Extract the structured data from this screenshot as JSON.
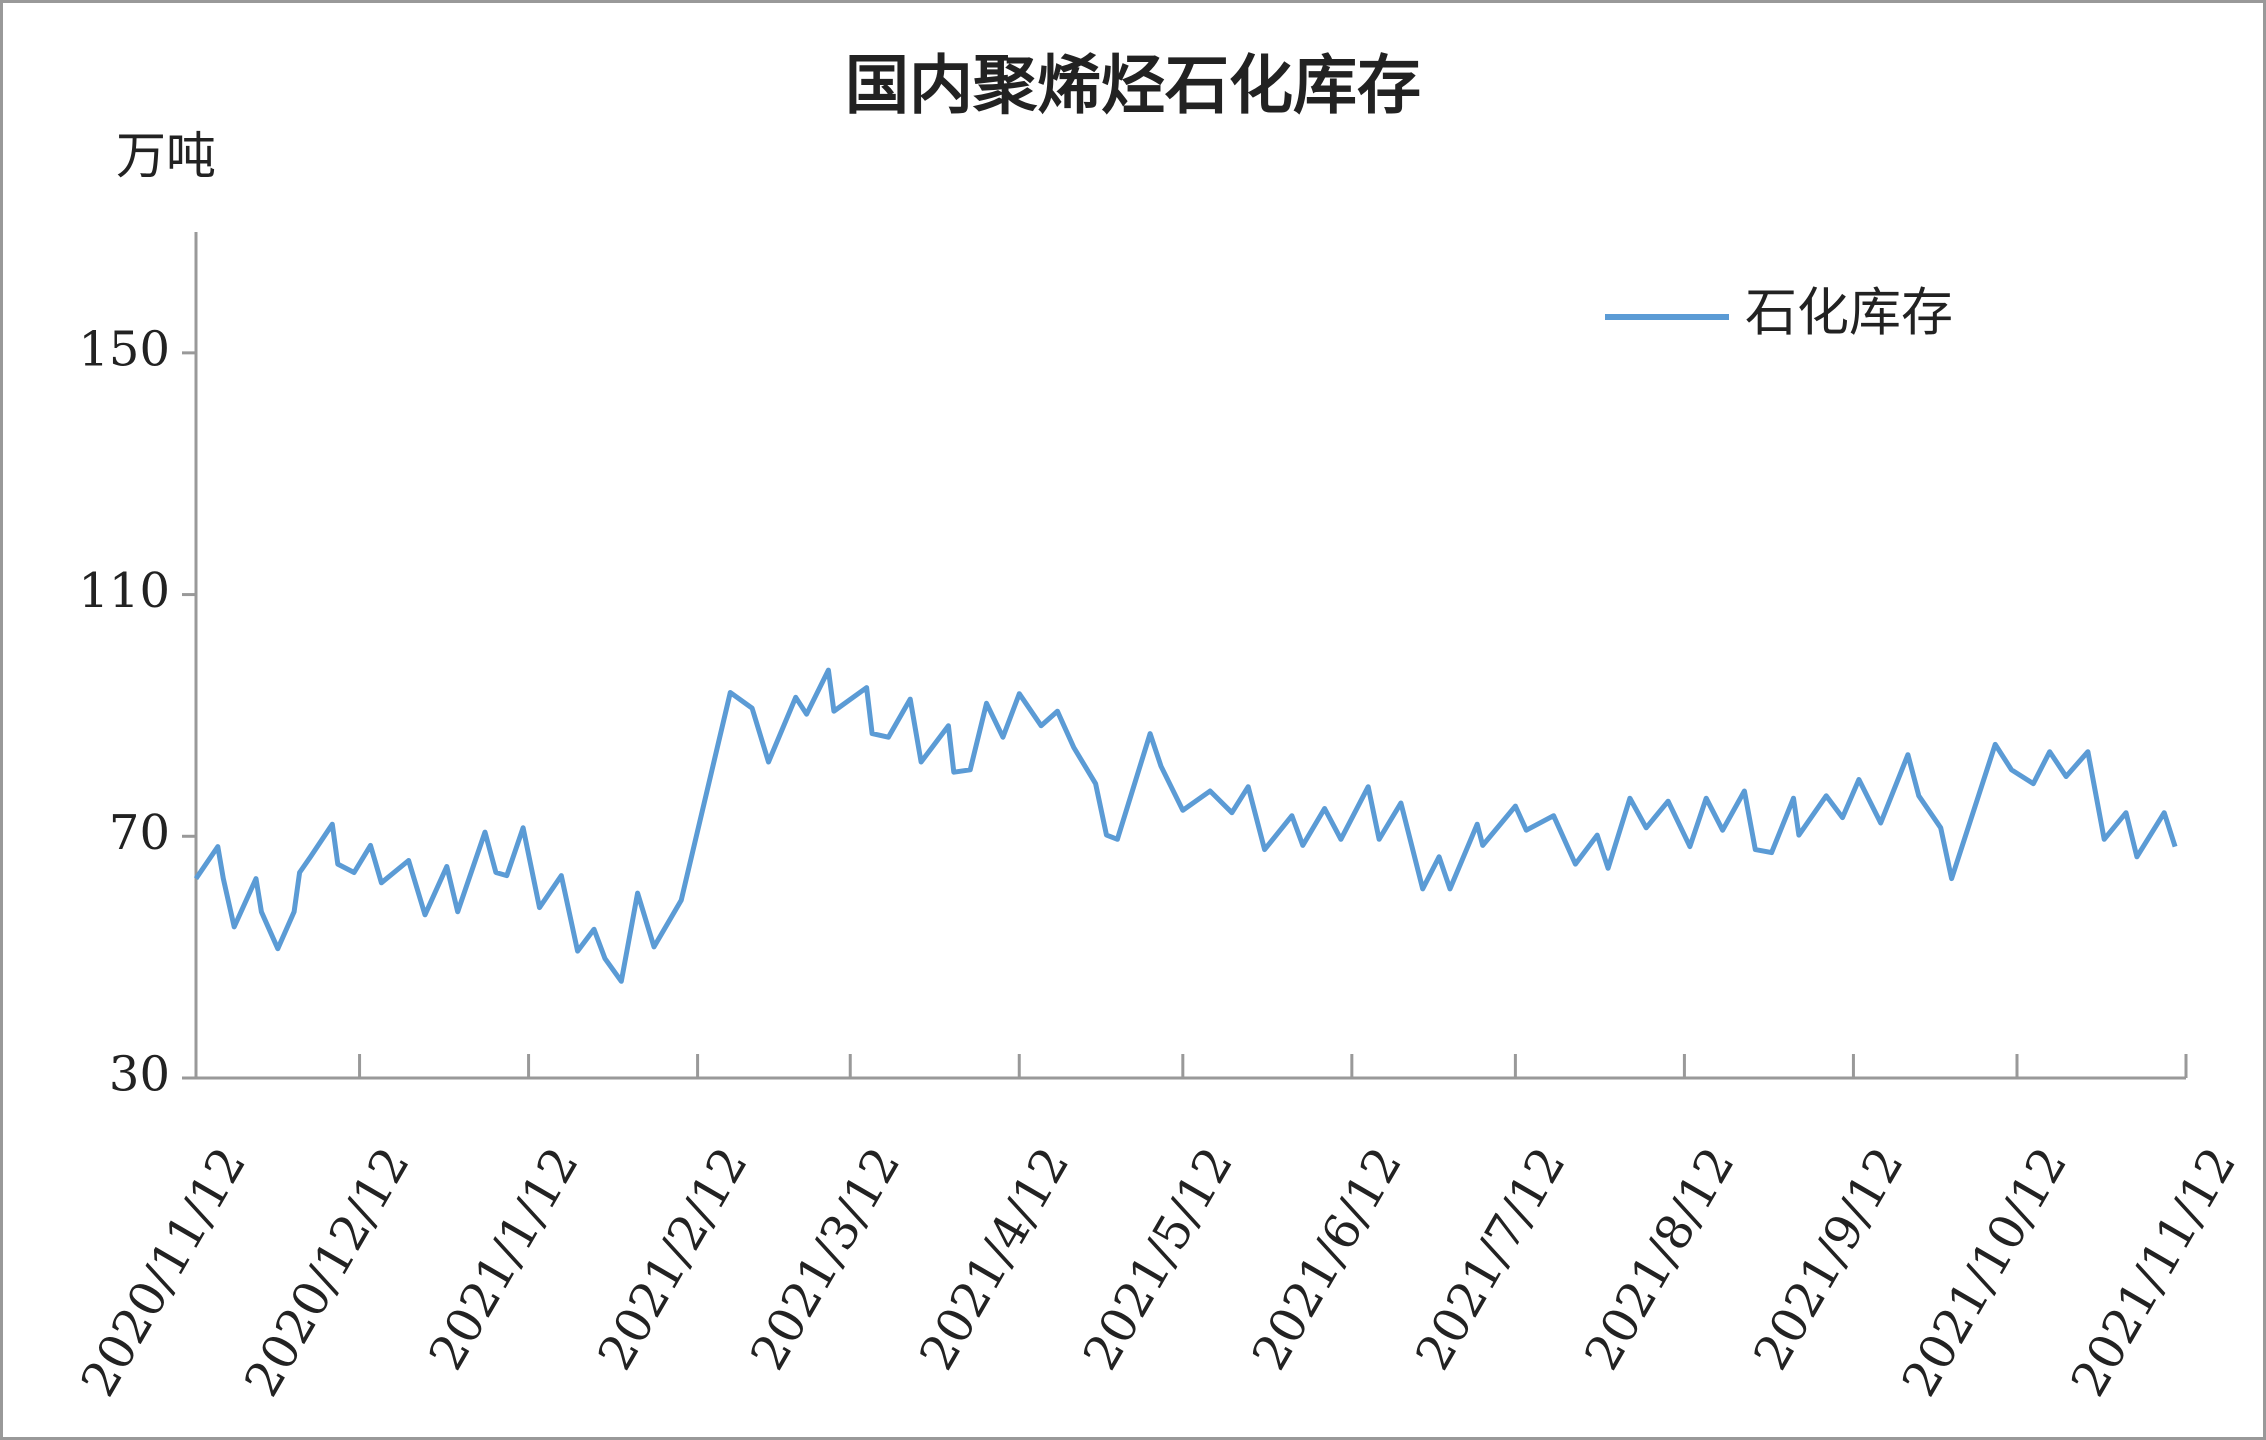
{
  "chart_data": {
    "type": "line",
    "title": "国内聚烯烃石化库存",
    "y_axis_label": "万吨",
    "x": [
      "2020/11/12",
      "2020/11/16",
      "2020/11/17",
      "2020/11/19",
      "2020/11/23",
      "2020/11/24",
      "2020/11/27",
      "2020/11/30",
      "2020/12/1",
      "2020/12/3",
      "2020/12/7",
      "2020/12/8",
      "2020/12/11",
      "2020/12/14",
      "2020/12/16",
      "2020/12/21",
      "2020/12/24",
      "2020/12/28",
      "2020/12/30",
      "2021/1/4",
      "2021/1/6",
      "2021/1/8",
      "2021/1/11",
      "2021/1/14",
      "2021/1/18",
      "2021/1/21",
      "2021/1/24",
      "2021/1/26",
      "2021/1/29",
      "2021/2/1",
      "2021/2/4",
      "2021/2/9",
      "2021/2/18",
      "2021/2/22",
      "2021/2/25",
      "2021/3/2",
      "2021/3/4",
      "2021/3/8",
      "2021/3/9",
      "2021/3/15",
      "2021/3/16",
      "2021/3/19",
      "2021/3/23",
      "2021/3/25",
      "2021/3/30",
      "2021/3/31",
      "2021/4/3",
      "2021/4/6",
      "2021/4/9",
      "2021/4/12",
      "2021/4/16",
      "2021/4/19",
      "2021/4/22",
      "2021/4/26",
      "2021/4/28",
      "2021/4/30",
      "2021/5/6",
      "2021/5/8",
      "2021/5/12",
      "2021/5/17",
      "2021/5/21",
      "2021/5/24",
      "2021/5/27",
      "2021/6/1",
      "2021/6/3",
      "2021/6/7",
      "2021/6/10",
      "2021/6/15",
      "2021/6/17",
      "2021/6/21",
      "2021/6/25",
      "2021/6/28",
      "2021/6/30",
      "2021/7/5",
      "2021/7/6",
      "2021/7/12",
      "2021/7/14",
      "2021/7/19",
      "2021/7/23",
      "2021/7/27",
      "2021/7/29",
      "2021/8/2",
      "2021/8/5",
      "2021/8/9",
      "2021/8/13",
      "2021/8/16",
      "2021/8/19",
      "2021/8/23",
      "2021/8/25",
      "2021/8/28",
      "2021/9/1",
      "2021/9/2",
      "2021/9/7",
      "2021/9/10",
      "2021/9/13",
      "2021/9/17",
      "2021/9/22",
      "2021/9/24",
      "2021/9/28",
      "2021/9/30",
      "2021/10/8",
      "2021/10/11",
      "2021/10/15",
      "2021/10/18",
      "2021/10/21",
      "2021/10/25",
      "2021/10/28",
      "2021/11/1",
      "2021/11/3",
      "2021/11/8",
      "2021/11/10"
    ],
    "series": [
      {
        "name": "石化库存",
        "color": "#5b9bd5",
        "values": [
          63,
          68.3,
          63,
          55,
          63,
          57.5,
          51.4,
          57.5,
          64,
          66.6,
          72,
          65.4,
          64,
          68.5,
          62.3,
          66,
          57,
          65,
          57.5,
          70.7,
          64,
          63.5,
          71.4,
          58.2,
          63.5,
          51,
          54.6,
          49.8,
          46,
          60.6,
          51.7,
          59.4,
          93.8,
          91.2,
          82.3,
          93,
          90.2,
          97.5,
          90.7,
          94.6,
          87,
          86.4,
          92.7,
          82.3,
          88.3,
          80.6,
          81,
          92,
          86.4,
          93.6,
          88.3,
          90.7,
          84.7,
          78.7,
          70.2,
          69.5,
          87,
          81.6,
          74.3,
          77.5,
          73.9,
          78.2,
          67.8,
          73.4,
          68.5,
          74.6,
          69.5,
          78.2,
          69.5,
          75.5,
          61.3,
          66.6,
          61.3,
          72,
          68.5,
          75,
          71,
          73.4,
          65.4,
          70.2,
          64.7,
          76.3,
          71.4,
          75.8,
          68.3,
          76.3,
          71,
          77.5,
          67.8,
          67.3,
          76.3,
          70.2,
          76.7,
          73.1,
          79.4,
          72.2,
          83.5,
          76.7,
          71.4,
          63,
          85.2,
          81,
          78.7,
          84,
          79.9,
          84,
          69.5,
          73.9,
          66.6,
          73.9,
          68.3
        ]
      }
    ],
    "xlim": [
      "2020/11/12",
      "2021/11/12"
    ],
    "xticks": [
      "2020/11/12",
      "2020/12/12",
      "2021/1/12",
      "2021/2/12",
      "2021/3/12",
      "2021/4/12",
      "2021/5/12",
      "2021/6/12",
      "2021/7/12",
      "2021/8/12",
      "2021/9/12",
      "2021/10/12",
      "2021/11/12"
    ],
    "ylim": [
      30,
      170
    ],
    "yticks": [
      30,
      70,
      110,
      150
    ],
    "legend": "upper right"
  }
}
